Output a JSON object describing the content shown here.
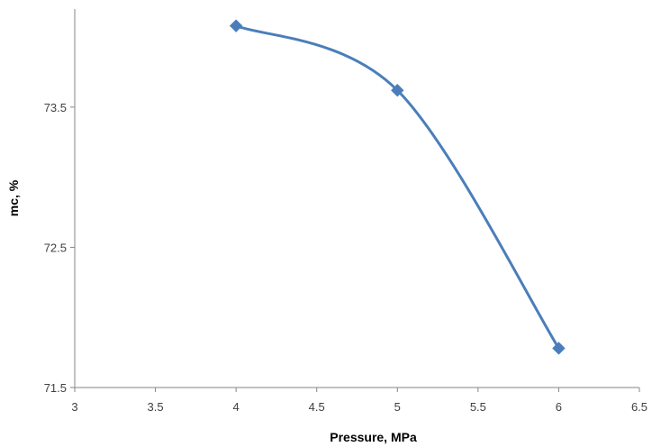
{
  "chart_data": {
    "type": "line",
    "title": "",
    "xlabel": "Pressure, MPa",
    "ylabel": "mc, %",
    "xlim": [
      3,
      6.5
    ],
    "ylim": [
      71.5,
      74.2
    ],
    "xticks": [
      "3",
      "3.5",
      "4",
      "4.5",
      "5",
      "5.5",
      "6",
      "6.5"
    ],
    "yticks": [
      "71.5",
      "72.5",
      "73.5"
    ],
    "grid": false,
    "legend": "none",
    "series": [
      {
        "x": [
          4,
          5,
          6
        ],
        "y": [
          74.08,
          73.62,
          71.78
        ],
        "color": "#4a7ebb",
        "marker": "diamond",
        "smooth": true
      }
    ]
  }
}
